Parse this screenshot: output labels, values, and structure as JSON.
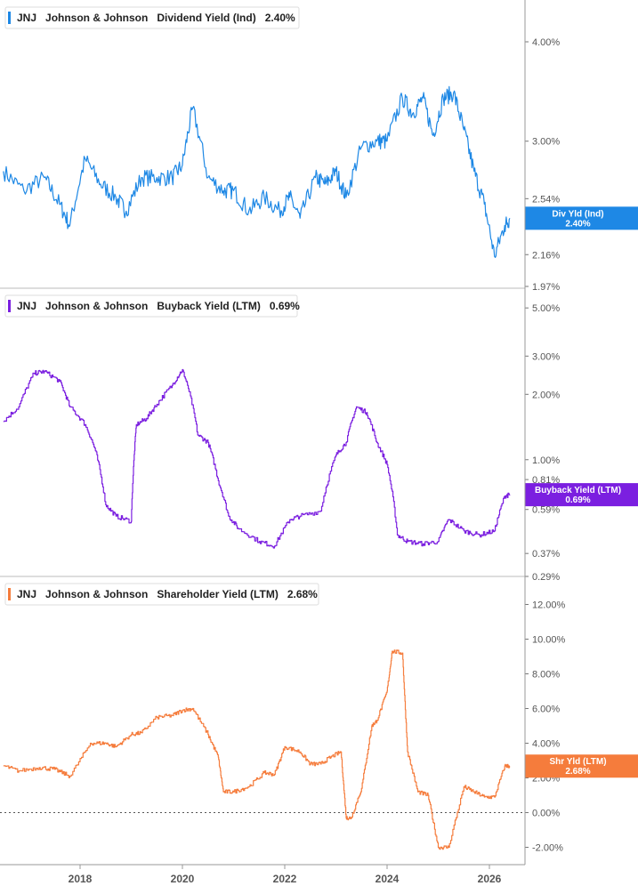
{
  "colors": {
    "dividend": "#1e88e5",
    "buyback": "#7b1fe0",
    "shareholder": "#f57c3c",
    "axis": "#555555",
    "grid": "#cccccc"
  },
  "x_axis": {
    "ticks": [
      "2018",
      "2020",
      "2022",
      "2024",
      "2026"
    ]
  },
  "chart_data": [
    {
      "type": "line",
      "ticker": "JNJ",
      "company": "Johnson & Johnson",
      "metric": "Dividend Yield (Ind)",
      "current": "2.40%",
      "tag_line1": "Div Yld (Ind)",
      "tag_line2": "2.40%",
      "scale": "log",
      "ylim": [
        1.97,
        4.4
      ],
      "y_ticks": [
        {
          "label": "4.00%",
          "value": 4.0
        },
        {
          "label": "3.00%",
          "value": 3.0
        },
        {
          "label": "2.54%",
          "value": 2.54
        },
        {
          "label": "2.16%",
          "value": 2.16
        },
        {
          "label": "1.97%",
          "value": 1.97
        }
      ],
      "x": [
        2016.5,
        2016.9,
        2017.3,
        2017.6,
        2017.8,
        2018.1,
        2018.4,
        2018.7,
        2018.9,
        2019.2,
        2019.5,
        2019.8,
        2020.0,
        2020.2,
        2020.5,
        2020.8,
        2021.0,
        2021.3,
        2021.6,
        2021.9,
        2022.1,
        2022.3,
        2022.6,
        2022.8,
        2023.0,
        2023.2,
        2023.5,
        2023.8,
        2024.0,
        2024.3,
        2024.5,
        2024.7,
        2024.9,
        2025.1,
        2025.3,
        2025.5,
        2025.7,
        2025.9,
        2026.1,
        2026.3,
        2026.4
      ],
      "y": [
        2.75,
        2.6,
        2.7,
        2.5,
        2.35,
        2.85,
        2.65,
        2.55,
        2.45,
        2.7,
        2.7,
        2.7,
        2.8,
        3.3,
        2.7,
        2.6,
        2.6,
        2.45,
        2.55,
        2.45,
        2.55,
        2.4,
        2.7,
        2.65,
        2.75,
        2.55,
        2.95,
        3.0,
        3.0,
        3.4,
        3.25,
        3.4,
        3.05,
        3.4,
        3.45,
        3.1,
        2.75,
        2.5,
        2.15,
        2.35,
        2.4
      ]
    },
    {
      "type": "line",
      "ticker": "JNJ",
      "company": "Johnson & Johnson",
      "metric": "Buyback Yield (LTM)",
      "current": "0.69%",
      "tag_line1": "Buyback Yield (LTM)",
      "tag_line2": "0.69%",
      "scale": "log",
      "ylim": [
        0.29,
        5.4
      ],
      "y_ticks": [
        {
          "label": "5.00%",
          "value": 5.0
        },
        {
          "label": "3.00%",
          "value": 3.0
        },
        {
          "label": "2.00%",
          "value": 2.0
        },
        {
          "label": "1.00%",
          "value": 1.0
        },
        {
          "label": "0.81%",
          "value": 0.81
        },
        {
          "label": "0.59%",
          "value": 0.59
        },
        {
          "label": "0.37%",
          "value": 0.37
        },
        {
          "label": "0.29%",
          "value": 0.29
        }
      ],
      "x": [
        2016.5,
        2016.8,
        2017.1,
        2017.3,
        2017.6,
        2017.8,
        2018.1,
        2018.3,
        2018.5,
        2018.7,
        2019.0,
        2019.1,
        2019.3,
        2019.5,
        2019.8,
        2020.0,
        2020.1,
        2020.3,
        2020.5,
        2020.7,
        2020.9,
        2021.1,
        2021.5,
        2021.8,
        2022.1,
        2022.3,
        2022.7,
        2023.0,
        2023.2,
        2023.4,
        2023.6,
        2023.8,
        2024.0,
        2024.2,
        2024.4,
        2024.7,
        2025.0,
        2025.2,
        2025.5,
        2025.8,
        2026.1,
        2026.3,
        2026.4
      ],
      "y": [
        1.5,
        1.75,
        2.5,
        2.55,
        2.3,
        1.75,
        1.45,
        1.1,
        0.62,
        0.55,
        0.52,
        1.45,
        1.55,
        1.8,
        2.2,
        2.6,
        2.2,
        1.3,
        1.2,
        0.8,
        0.55,
        0.48,
        0.42,
        0.4,
        0.53,
        0.55,
        0.58,
        1.05,
        1.2,
        1.75,
        1.65,
        1.2,
        0.95,
        0.45,
        0.42,
        0.41,
        0.42,
        0.53,
        0.47,
        0.45,
        0.47,
        0.68,
        0.69
      ]
    },
    {
      "type": "line",
      "ticker": "JNJ",
      "company": "Johnson & Johnson",
      "metric": "Shareholder Yield (LTM)",
      "current": "2.68%",
      "tag_line1": "Shr Yld (LTM)",
      "tag_line2": "2.68%",
      "scale": "linear",
      "ylim": [
        -3.0,
        13.0
      ],
      "zero_line": true,
      "y_ticks": [
        {
          "label": "12.00%",
          "value": 12.0
        },
        {
          "label": "10.00%",
          "value": 10.0
        },
        {
          "label": "8.00%",
          "value": 8.0
        },
        {
          "label": "6.00%",
          "value": 6.0
        },
        {
          "label": "4.00%",
          "value": 4.0
        },
        {
          "label": "2.00%",
          "value": 2.0
        },
        {
          "label": "0.00%",
          "value": 0.0
        },
        {
          "label": "-2.00%",
          "value": -2.0
        }
      ],
      "x": [
        2016.5,
        2016.8,
        2017.2,
        2017.5,
        2017.8,
        2018.2,
        2018.5,
        2018.7,
        2019.0,
        2019.2,
        2019.5,
        2019.8,
        2020.0,
        2020.2,
        2020.5,
        2020.7,
        2020.8,
        2021.0,
        2021.3,
        2021.6,
        2021.8,
        2022.0,
        2022.3,
        2022.5,
        2022.7,
        2022.9,
        2023.1,
        2023.2,
        2023.3,
        2023.5,
        2023.7,
        2023.8,
        2024.0,
        2024.1,
        2024.3,
        2024.4,
        2024.6,
        2024.8,
        2025.0,
        2025.2,
        2025.5,
        2025.7,
        2025.9,
        2026.1,
        2026.3,
        2026.4
      ],
      "y": [
        2.7,
        2.4,
        2.6,
        2.5,
        2.1,
        4.0,
        4.0,
        3.8,
        4.5,
        4.6,
        5.5,
        5.6,
        5.9,
        6.0,
        4.5,
        3.2,
        1.2,
        1.2,
        1.5,
        2.3,
        2.2,
        3.8,
        3.5,
        2.8,
        2.8,
        3.2,
        3.5,
        -0.3,
        -0.3,
        1.4,
        5.0,
        5.3,
        7.0,
        9.3,
        9.2,
        3.5,
        1.2,
        1.0,
        -2.0,
        -2.0,
        1.5,
        1.2,
        0.9,
        0.9,
        2.7,
        2.68
      ]
    }
  ]
}
